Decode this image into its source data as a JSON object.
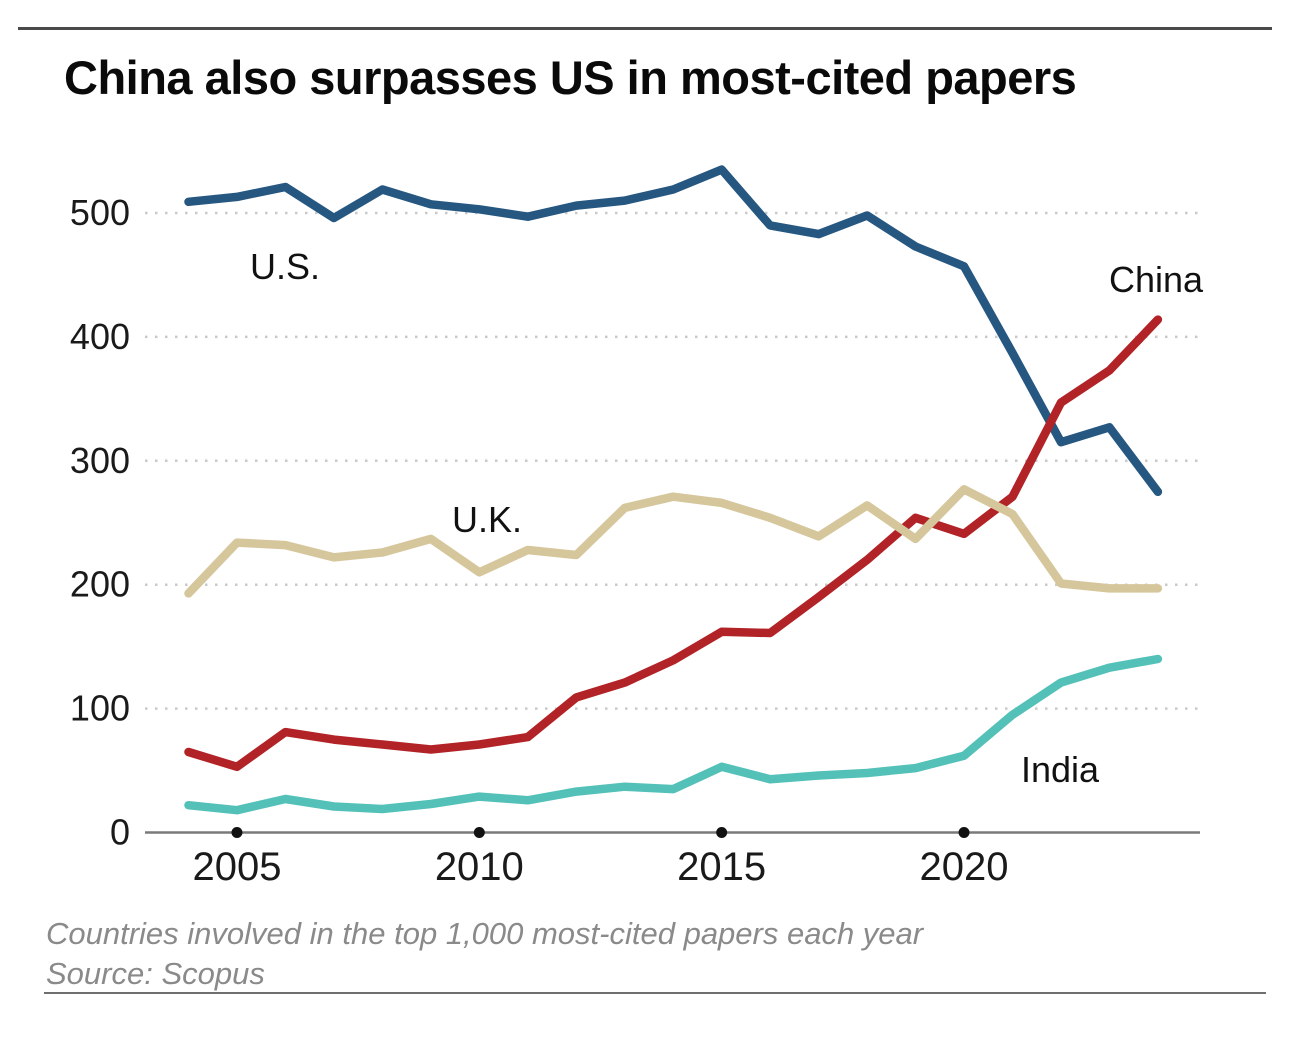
{
  "page": {
    "title": "China also surpasses US in most-cited papers",
    "footnote": "Countries involved in the top 1,000 most-cited papers each year",
    "source": "Source: Scopus"
  },
  "chart_data": {
    "type": "line",
    "title": "China also surpasses US in most-cited papers",
    "note": "Countries involved in the top 1,000 most-cited papers each year",
    "source": "Source: Scopus",
    "x": [
      2004,
      2005,
      2006,
      2007,
      2008,
      2009,
      2010,
      2011,
      2012,
      2013,
      2014,
      2015,
      2016,
      2017,
      2018,
      2019,
      2020,
      2021,
      2022,
      2023,
      2024
    ],
    "x_ticks": [
      2005,
      2010,
      2015,
      2020
    ],
    "y_ticks": [
      0,
      100,
      200,
      300,
      400,
      500
    ],
    "ylim": [
      0,
      560
    ],
    "xlabel": "",
    "ylabel": "",
    "grid": "horizontal-dotted",
    "legend": "inline-labels",
    "axis_color": "#7a7a7a",
    "grid_color": "#c9c9c9",
    "tick_label_color": "#1a1a1a",
    "series": [
      {
        "key": "us",
        "name": "U.S.",
        "color": "#255780",
        "values": [
          509,
          513,
          521,
          496,
          519,
          507,
          503,
          497,
          506,
          510,
          519,
          535,
          490,
          483,
          498,
          473,
          457,
          387,
          315,
          327,
          275
        ]
      },
      {
        "key": "china",
        "name": "China",
        "color": "#b22327",
        "values": [
          65,
          53,
          81,
          75,
          71,
          67,
          71,
          77,
          109,
          121,
          139,
          162,
          161,
          190,
          220,
          254,
          241,
          271,
          347,
          373,
          414
        ]
      },
      {
        "key": "uk",
        "name": "U.K.",
        "color": "#d6c69b",
        "values": [
          193,
          234,
          232,
          222,
          226,
          237,
          210,
          228,
          224,
          262,
          271,
          266,
          254,
          239,
          264,
          237,
          277,
          257,
          201,
          197,
          197
        ]
      },
      {
        "key": "india",
        "name": "India",
        "color": "#53c1b8",
        "values": [
          22,
          18,
          27,
          21,
          19,
          23,
          29,
          26,
          33,
          37,
          35,
          53,
          43,
          46,
          48,
          52,
          62,
          95,
          121,
          133,
          140
        ]
      }
    ]
  }
}
